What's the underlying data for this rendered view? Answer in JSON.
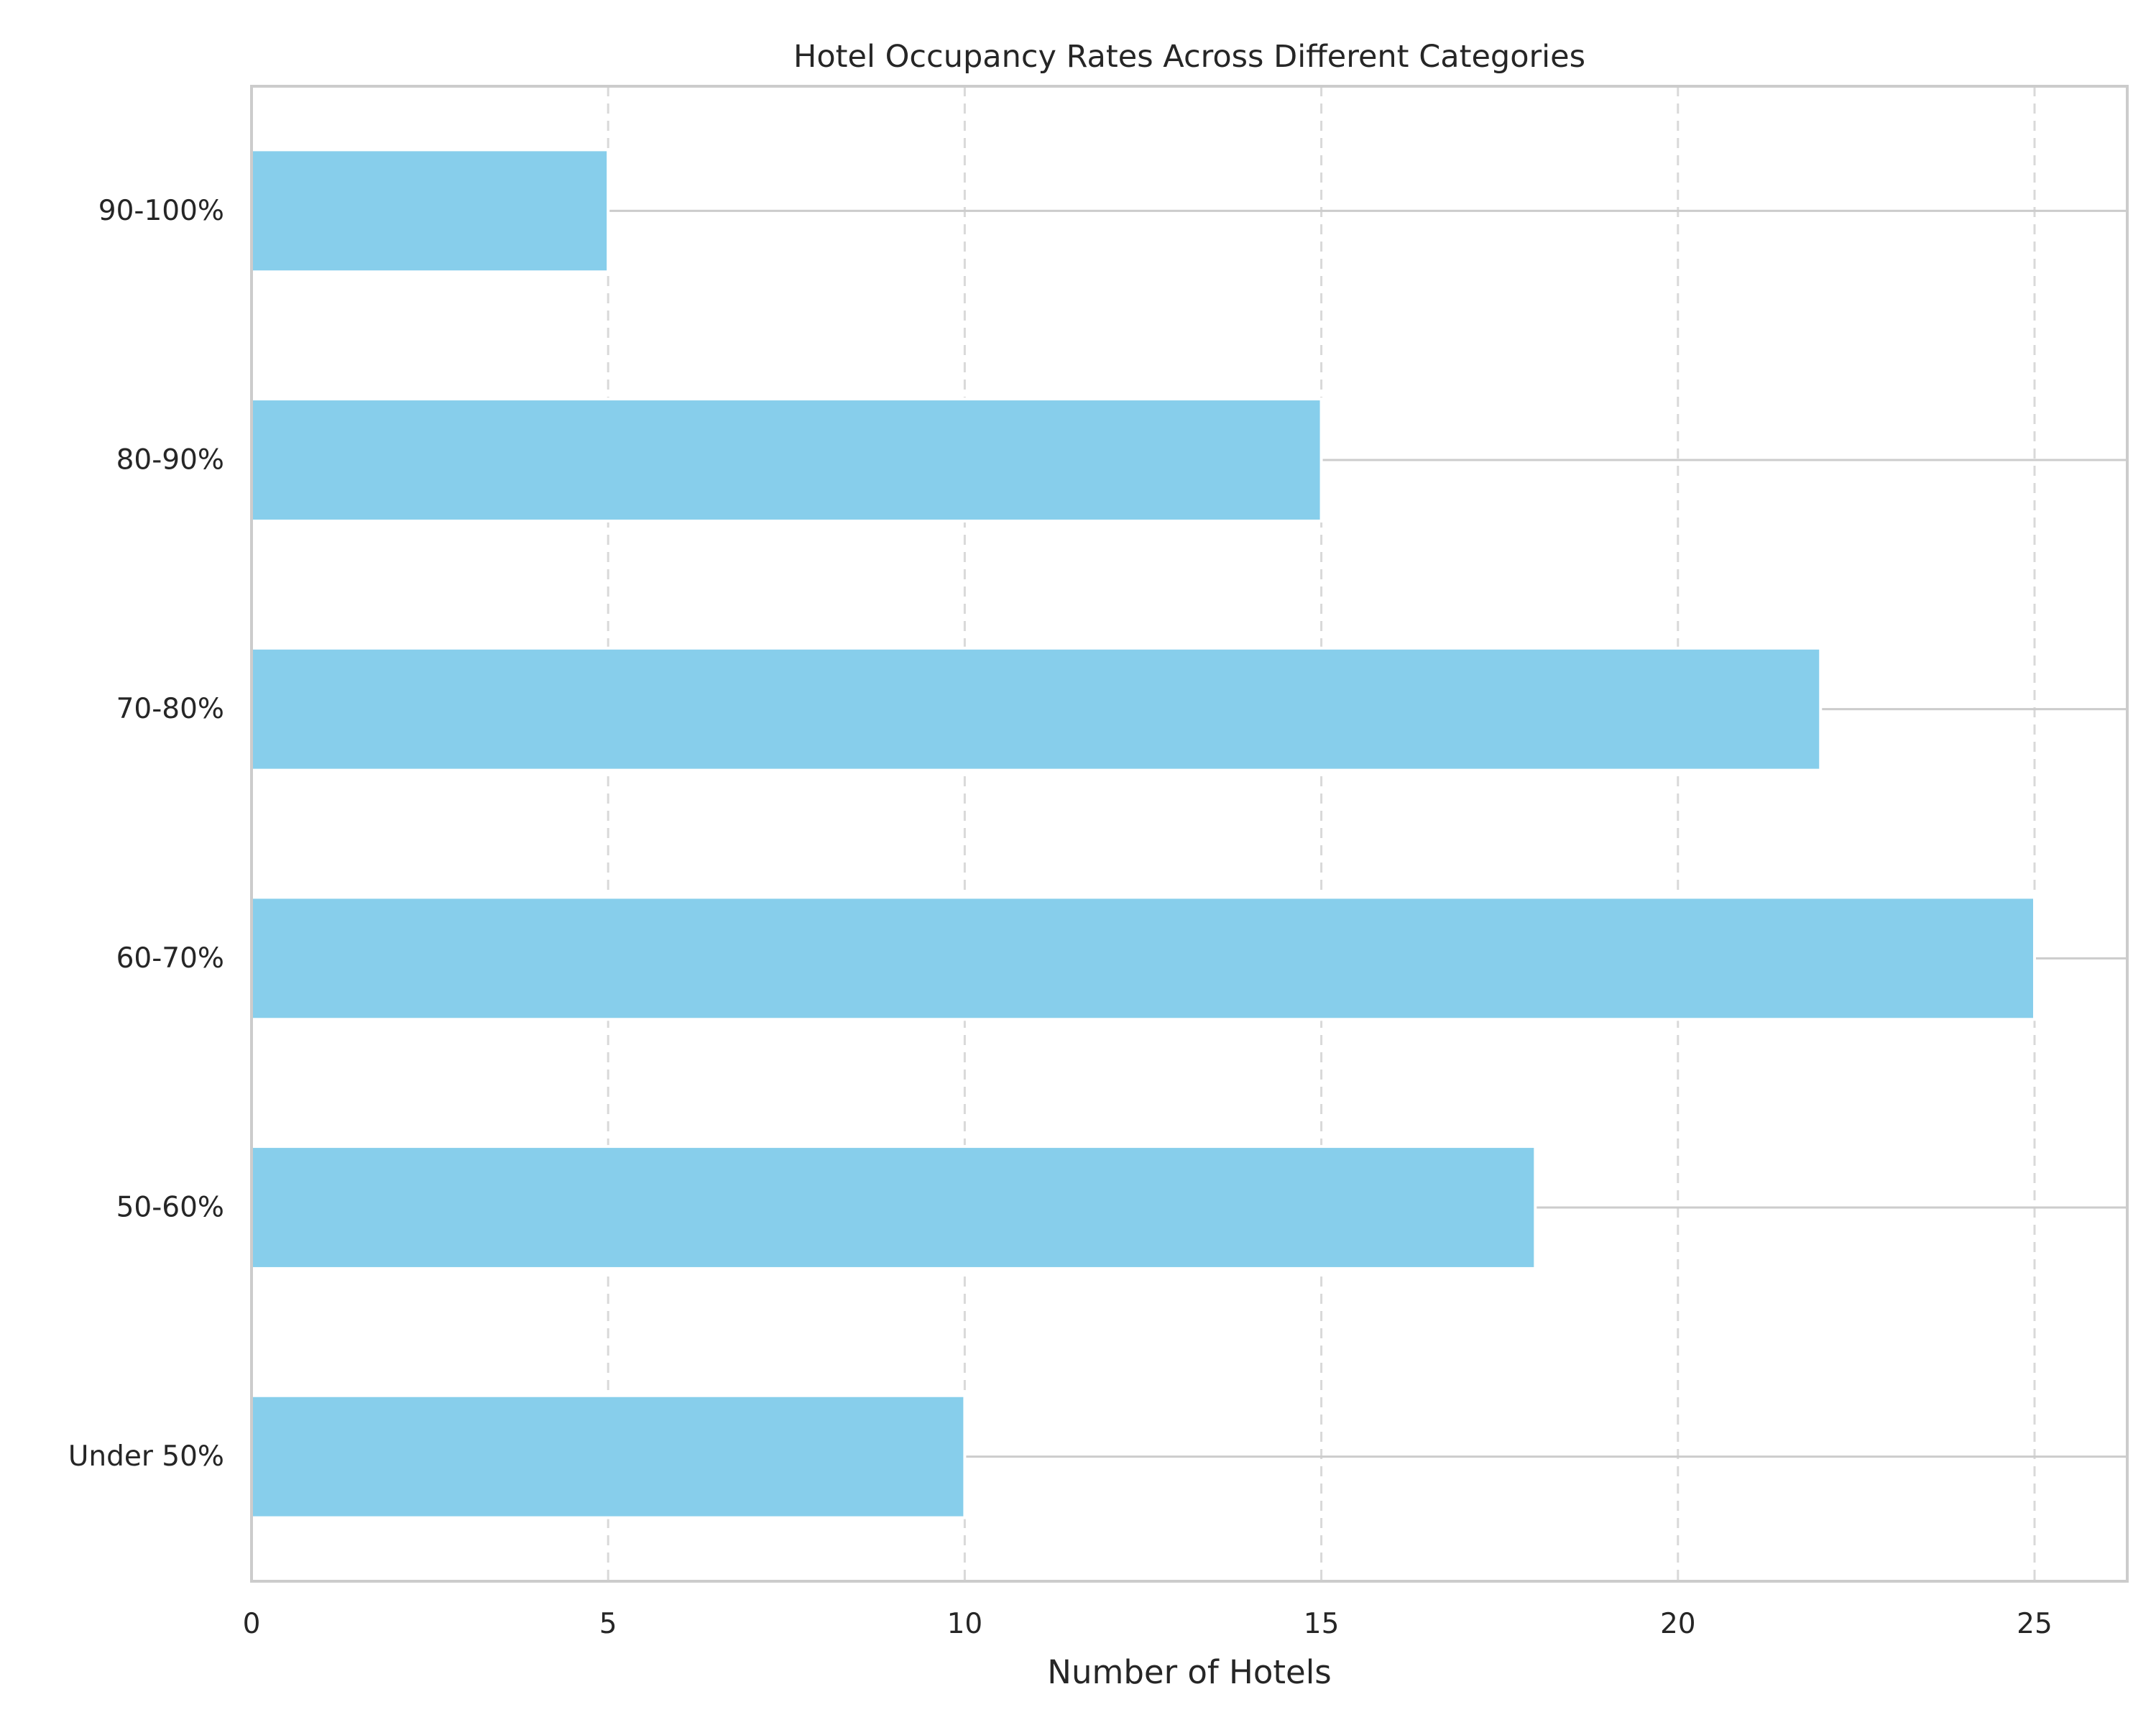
{
  "chart_data": {
    "type": "bar",
    "orientation": "horizontal",
    "title": "Hotel Occupancy Rates Across Different Categories",
    "xlabel": "Number of Hotels",
    "ylabel": "",
    "categories": [
      "Under 50%",
      "50-60%",
      "60-70%",
      "70-80%",
      "80-90%",
      "90-100%"
    ],
    "values": [
      10,
      18,
      25,
      22,
      15,
      5
    ],
    "xlim": [
      0,
      26.3
    ],
    "xticks": [
      0,
      5,
      10,
      15,
      20,
      25
    ],
    "grid": {
      "x": "dashed",
      "y": "solid"
    },
    "legend": "none",
    "colors": {
      "bar": "#87CEEB",
      "axes_edge": "#cccccc",
      "grid_x": "#d9d9d9",
      "grid_y": "#cccccc",
      "text": "#262626"
    }
  }
}
